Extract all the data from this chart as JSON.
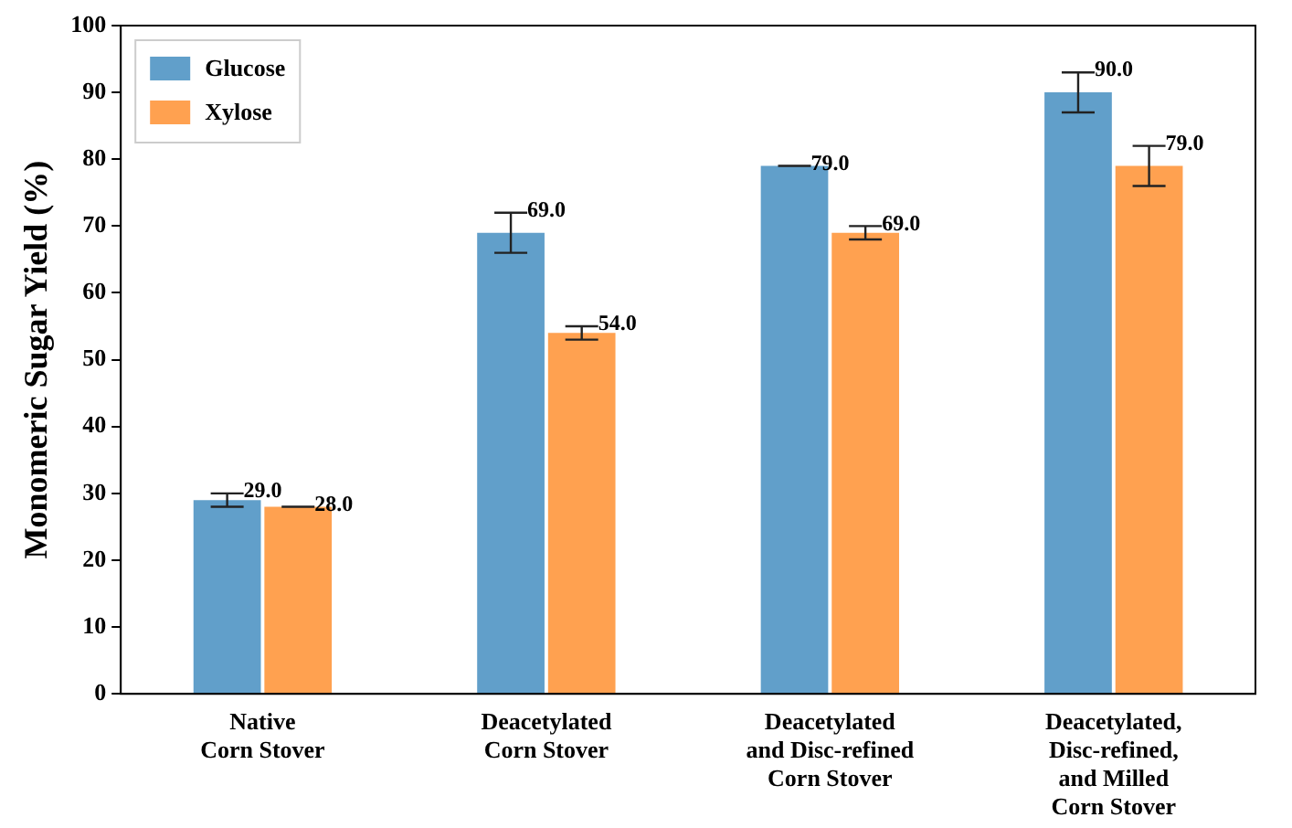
{
  "chart_data": {
    "type": "bar",
    "ylabel": "Monomeric Sugar Yield (%)",
    "categories": [
      "Native\nCorn Stover",
      "Deacetylated\nCorn Stover",
      "Deacetylated\nand Disc-refined\nCorn Stover",
      "Deacetylated,\nDisc-refined,\nand Milled\nCorn Stover"
    ],
    "series": [
      {
        "name": "Glucose",
        "color": "#619fca",
        "values": [
          29,
          69,
          79,
          90
        ],
        "errors": [
          1,
          3,
          0,
          3
        ],
        "value_labels": [
          "29.0",
          "69.0",
          "79.0",
          "90.0"
        ]
      },
      {
        "name": "Xylose",
        "color": "#ffa150",
        "values": [
          28,
          54,
          69,
          79
        ],
        "errors": [
          0,
          1,
          1,
          3
        ],
        "value_labels": [
          "28.0",
          "54.0",
          "69.0",
          "79.0"
        ]
      }
    ],
    "ylim": [
      0,
      100
    ],
    "yticks": [
      0,
      10,
      20,
      30,
      40,
      50,
      60,
      70,
      80,
      90,
      100
    ],
    "grid": false,
    "legend": "top left"
  }
}
